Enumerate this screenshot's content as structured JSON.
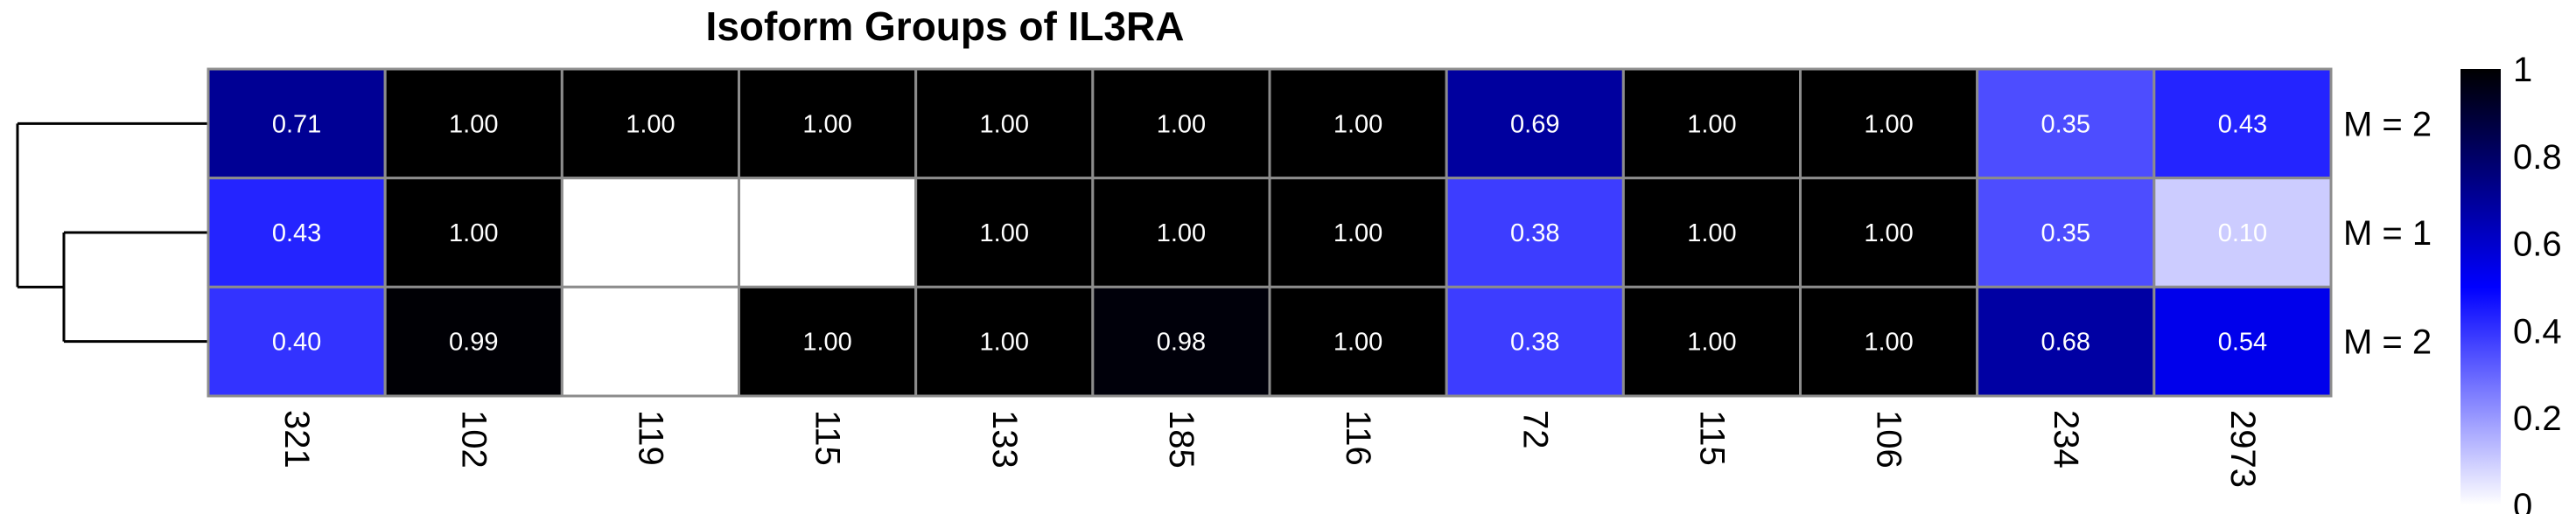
{
  "chart_data": {
    "type": "heatmap",
    "title": "Isoform Groups of IL3RA",
    "columns": [
      "321",
      "102",
      "119",
      "115",
      "133",
      "185",
      "116",
      "72",
      "115",
      "106",
      "234",
      "2973"
    ],
    "rows": [
      "M = 2",
      "M = 1",
      "M = 2"
    ],
    "values": [
      [
        0.71,
        1.0,
        1.0,
        1.0,
        1.0,
        1.0,
        1.0,
        0.69,
        1.0,
        1.0,
        0.35,
        0.43
      ],
      [
        0.43,
        1.0,
        null,
        null,
        1.0,
        1.0,
        1.0,
        0.38,
        1.0,
        1.0,
        0.35,
        0.1
      ],
      [
        0.4,
        0.99,
        null,
        1.0,
        1.0,
        0.98,
        1.0,
        0.38,
        1.0,
        1.0,
        0.68,
        0.54
      ]
    ],
    "labels": [
      [
        "0.71",
        "1.00",
        "1.00",
        "1.00",
        "1.00",
        "1.00",
        "1.00",
        "0.69",
        "1.00",
        "1.00",
        "0.35",
        "0.43"
      ],
      [
        "0.43",
        "1.00",
        "",
        "",
        "1.00",
        "1.00",
        "1.00",
        "0.38",
        "1.00",
        "1.00",
        "0.35",
        "0.10"
      ],
      [
        "0.40",
        "0.99",
        "",
        "1.00",
        "1.00",
        "0.98",
        "1.00",
        "0.38",
        "1.00",
        "1.00",
        "0.68",
        "0.54"
      ]
    ],
    "color_scale": {
      "min": 0,
      "max": 1,
      "ticks": [
        "0",
        "0.2",
        "0.4",
        "0.6",
        "0.8",
        "1"
      ],
      "colors": [
        "#ffffff",
        "#0000ff",
        "#000000"
      ]
    },
    "row_dendrogram": true
  }
}
